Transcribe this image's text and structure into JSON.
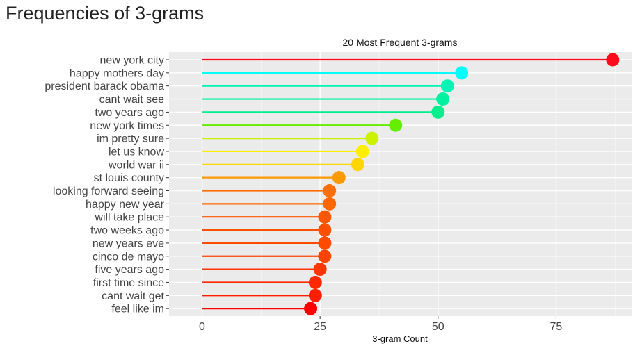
{
  "page": {
    "heading": "Frequencies of 3-grams"
  },
  "chart_data": {
    "type": "lollipop",
    "title": "20 Most Frequent 3-grams",
    "xlabel": "3-gram Count",
    "ylabel": "",
    "xlim": [
      -7,
      91
    ],
    "xticks": [
      0,
      25,
      50,
      75
    ],
    "grid": true,
    "legend": "none",
    "categories": [
      "new york city",
      "happy mothers day",
      "president barack obama",
      "cant wait see",
      "two years ago",
      "new york times",
      "im pretty sure",
      "let us know",
      "world war ii",
      "st louis county",
      "looking forward seeing",
      "happy new year",
      "will take place",
      "two weeks ago",
      "new years eve",
      "cinco de mayo",
      "five years ago",
      "first time since",
      "cant wait get",
      "feel like im"
    ],
    "values": [
      87,
      55,
      52,
      51,
      50,
      41,
      36,
      34,
      33,
      29,
      27,
      27,
      26,
      26,
      26,
      26,
      25,
      24,
      24,
      23
    ],
    "colors": [
      "#ff0a1c",
      "#00ffff",
      "#00f5b4",
      "#00f2a0",
      "#00ee8c",
      "#66ee00",
      "#ccf200",
      "#ffee00",
      "#ffd700",
      "#ff9900",
      "#ff6e00",
      "#ff6800",
      "#ff5600",
      "#ff5000",
      "#ff4a00",
      "#ff4400",
      "#ff3600",
      "#ff2800",
      "#ff1e00",
      "#ff0000"
    ]
  }
}
